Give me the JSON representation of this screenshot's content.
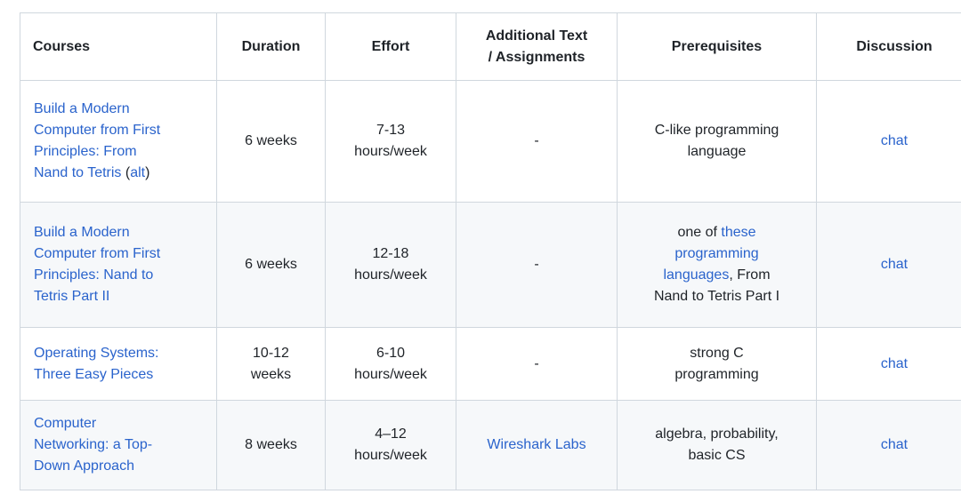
{
  "colors": {
    "link": "#2a63cc",
    "text": "#1f2328",
    "border": "#d0d7de",
    "zebra_row_bg": "#f6f8fa",
    "row_bg": "#ffffff"
  },
  "table": {
    "columns": [
      {
        "key": "courses",
        "label": "Courses",
        "align": "left"
      },
      {
        "key": "duration",
        "label": "Duration",
        "align": "center"
      },
      {
        "key": "effort",
        "label": "Effort",
        "align": "center"
      },
      {
        "key": "additional",
        "label": "Additional Text\n/ Assignments",
        "align": "center"
      },
      {
        "key": "prerequisites",
        "label": "Prerequisites",
        "align": "center"
      },
      {
        "key": "discussion",
        "label": "Discussion",
        "align": "center"
      }
    ],
    "rows": [
      {
        "cells": [
          [
            {
              "text": "Build a Modern\nComputer from First\nPrinciples: From\nNand to Tetris",
              "link": true,
              "name": "course-link-nand2tetris-part1"
            },
            {
              "text": " ("
            },
            {
              "text": "alt",
              "link": true,
              "name": "course-alt-link"
            },
            {
              "text": ")"
            }
          ],
          [
            {
              "text": "6 weeks"
            }
          ],
          [
            {
              "text": "7-13\nhours/week"
            }
          ],
          [
            {
              "text": "-"
            }
          ],
          [
            {
              "text": "C-like programming\nlanguage"
            }
          ],
          [
            {
              "text": "chat",
              "link": true,
              "name": "chat-link"
            }
          ]
        ]
      },
      {
        "cells": [
          [
            {
              "text": "Build a Modern\nComputer from First\nPrinciples: Nand to\nTetris Part II",
              "link": true,
              "name": "course-link-nand2tetris-part2"
            }
          ],
          [
            {
              "text": "6 weeks"
            }
          ],
          [
            {
              "text": "12-18\nhours/week"
            }
          ],
          [
            {
              "text": "-"
            }
          ],
          [
            {
              "text": "one of "
            },
            {
              "text": "these\nprogramming\nlanguages",
              "link": true,
              "name": "programming-languages-link"
            },
            {
              "text": ", From\nNand to Tetris Part I"
            }
          ],
          [
            {
              "text": "chat",
              "link": true,
              "name": "chat-link"
            }
          ]
        ]
      },
      {
        "cells": [
          [
            {
              "text": "Operating Systems:\nThree Easy Pieces",
              "link": true,
              "name": "course-link-ostep"
            }
          ],
          [
            {
              "text": "10-12\nweeks"
            }
          ],
          [
            {
              "text": "6-10\nhours/week"
            }
          ],
          [
            {
              "text": "-"
            }
          ],
          [
            {
              "text": "strong C\nprogramming"
            }
          ],
          [
            {
              "text": "chat",
              "link": true,
              "name": "chat-link"
            }
          ]
        ]
      },
      {
        "cells": [
          [
            {
              "text": "Computer\nNetworking: a Top-\nDown Approach",
              "link": true,
              "name": "course-link-computer-networking"
            }
          ],
          [
            {
              "text": "8 weeks"
            }
          ],
          [
            {
              "text": "4–12\nhours/week"
            }
          ],
          [
            {
              "text": "Wireshark Labs",
              "link": true,
              "name": "wireshark-labs-link"
            }
          ],
          [
            {
              "text": "algebra, probability,\nbasic CS"
            }
          ],
          [
            {
              "text": "chat",
              "link": true,
              "name": "chat-link"
            }
          ]
        ]
      }
    ]
  }
}
